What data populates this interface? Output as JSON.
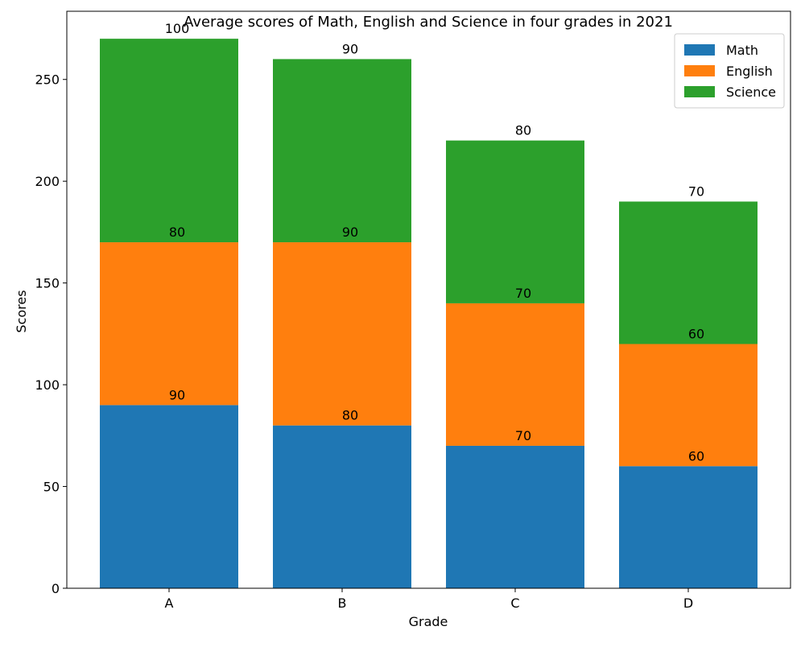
{
  "chart_data": {
    "type": "bar",
    "stacked": true,
    "title": "Average scores of Math, English and Science in four grades in 2021",
    "xlabel": "Grade",
    "ylabel": "Scores",
    "categories": [
      "A",
      "B",
      "C",
      "D"
    ],
    "series": [
      {
        "name": "Math",
        "values": [
          90,
          80,
          70,
          60
        ],
        "color": "#1f77b4"
      },
      {
        "name": "English",
        "values": [
          80,
          90,
          70,
          60
        ],
        "color": "#ff7f0e"
      },
      {
        "name": "Science",
        "values": [
          100,
          90,
          80,
          70
        ],
        "color": "#2ca02c"
      }
    ],
    "ylim": [
      0,
      283.5
    ],
    "yticks": [
      0,
      50,
      100,
      150,
      200,
      250
    ],
    "grid": false,
    "legend": "top-right"
  }
}
